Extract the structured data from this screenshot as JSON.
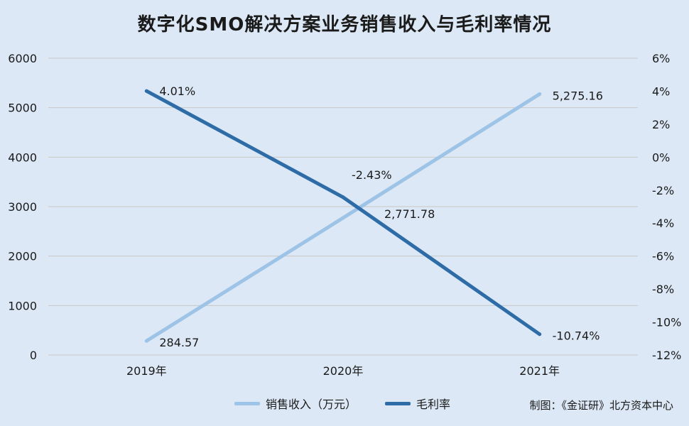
{
  "title": "数字化SMO解决方案业务销售收入与毛利率情况",
  "source": "制图：《金证研》北方资本中心",
  "colors": {
    "revenue": "#9dc3e6",
    "margin": "#2e6ca8",
    "grid": "#c8c8c8",
    "background": "#dce8f5"
  },
  "chart_data": {
    "type": "line",
    "categories": [
      "2019年",
      "2020年",
      "2021年"
    ],
    "series": [
      {
        "name": "销售收入（万元）",
        "axis": "left",
        "values": [
          284.57,
          2771.78,
          5275.16
        ],
        "labels": [
          "284.57",
          "2,771.78",
          "5,275.16"
        ]
      },
      {
        "name": "毛利率",
        "axis": "right",
        "values": [
          4.01,
          -2.43,
          -10.74
        ],
        "labels": [
          "4.01%",
          "-2.43%",
          "-10.74%"
        ]
      }
    ],
    "left_axis": {
      "ylim": [
        0,
        6000
      ],
      "ticks": [
        "0",
        "1000",
        "2000",
        "3000",
        "4000",
        "5000",
        "6000"
      ]
    },
    "right_axis": {
      "ylim": [
        -12,
        6
      ],
      "unit": "%",
      "ticks": [
        "-12%",
        "-10%",
        "-8%",
        "-6%",
        "-4%",
        "-2%",
        "0%",
        "2%",
        "4%",
        "6%"
      ]
    },
    "grid": true,
    "legend": "bottom"
  }
}
